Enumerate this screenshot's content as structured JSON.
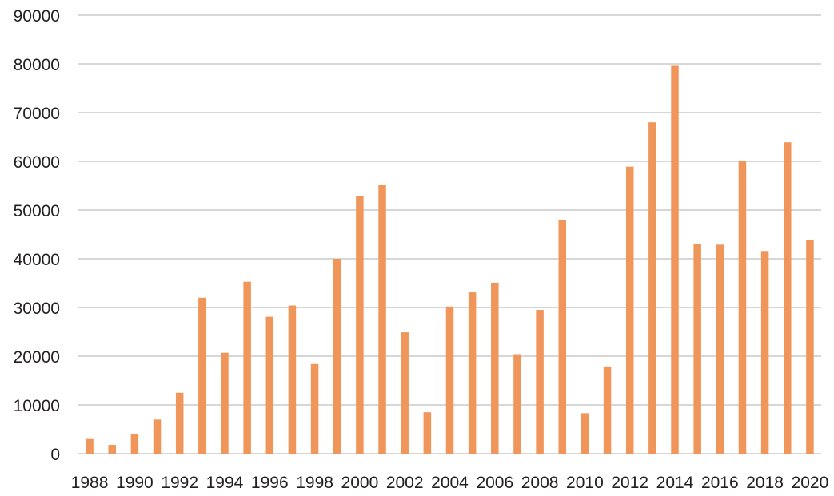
{
  "chart_data": {
    "type": "bar",
    "title": "",
    "xlabel": "",
    "ylabel": "",
    "ylim": [
      0,
      90000
    ],
    "yticks": [
      0,
      10000,
      20000,
      30000,
      40000,
      50000,
      60000,
      70000,
      80000,
      90000
    ],
    "grid": true,
    "legend": "none",
    "bar_color": "#f0965a",
    "categories": [
      "1988",
      "1989",
      "1990",
      "1991",
      "1992",
      "1993",
      "1994",
      "1995",
      "1996",
      "1997",
      "1998",
      "1999",
      "2000",
      "2001",
      "2002",
      "2003",
      "2004",
      "2005",
      "2006",
      "2007",
      "2008",
      "2009",
      "2010",
      "2011",
      "2012",
      "2013",
      "2014",
      "2015",
      "2016",
      "2017",
      "2018",
      "2019",
      "2020"
    ],
    "xtick_labels": [
      "1988",
      "",
      "1990",
      "",
      "1992",
      "",
      "1994",
      "",
      "1996",
      "",
      "1998",
      "",
      "2000",
      "",
      "2002",
      "",
      "2004",
      "",
      "2006",
      "",
      "2008",
      "",
      "2010",
      "",
      "2012",
      "",
      "2014",
      "",
      "2016",
      "",
      "2018",
      "",
      "2020"
    ],
    "values": [
      3000,
      1800,
      4000,
      7000,
      12500,
      32000,
      20700,
      35300,
      28100,
      30400,
      18400,
      40000,
      52800,
      55100,
      24900,
      8500,
      30200,
      33100,
      35100,
      20400,
      29500,
      48000,
      8300,
      17900,
      58900,
      68000,
      79600,
      43100,
      42900,
      60100,
      41600,
      63900,
      43800
    ]
  }
}
